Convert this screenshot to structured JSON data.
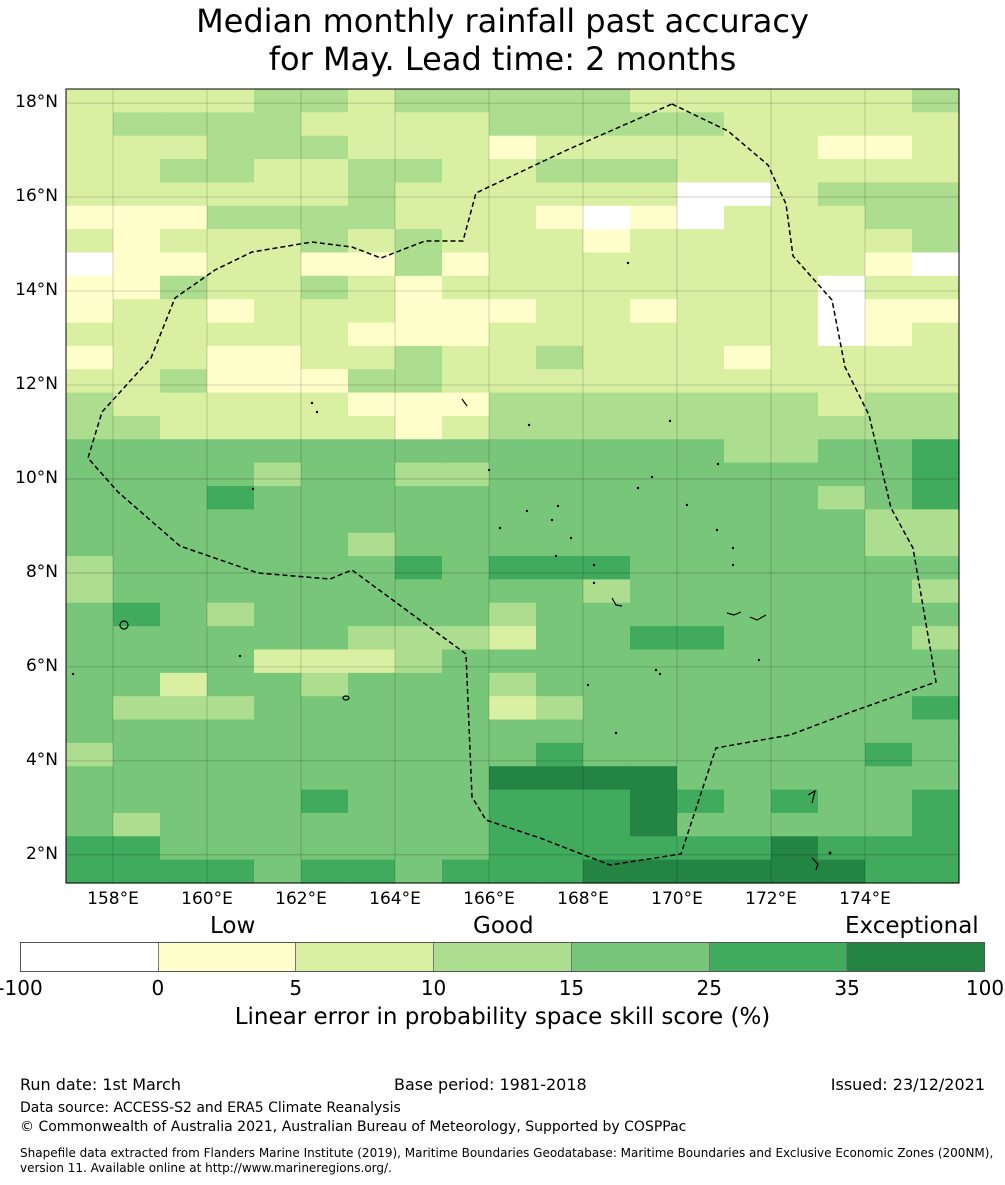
{
  "title": {
    "line1": "Median monthly rainfall past accuracy",
    "line2": "for May. Lead time: 2 months"
  },
  "map": {
    "lat_labels": [
      "18°N",
      "16°N",
      "14°N",
      "12°N",
      "10°N",
      "8°N",
      "6°N",
      "4°N",
      "2°N"
    ],
    "lon_labels": [
      "158°E",
      "160°E",
      "162°E",
      "164°E",
      "166°E",
      "168°E",
      "170°E",
      "172°E",
      "174°E"
    ],
    "lat_values": [
      18,
      16,
      14,
      12,
      10,
      8,
      6,
      4,
      2
    ],
    "lon_values": [
      158,
      160,
      162,
      164,
      166,
      168,
      170,
      172,
      174
    ],
    "extent": {
      "lon_min": 157.0,
      "lon_max": 176.0,
      "lat_min": 1.4,
      "lat_max": 18.3
    },
    "cell_rows_note": "rows top to bottom, cols left to right; class index 0..6 per colorbar segment",
    "grid": [
      "2222332333332222223",
      "2333322223333322222",
      "2223332221222222112",
      "2233223322333222222",
      "2222223222222002333",
      "1113333222101022233",
      "2122232322212222223",
      "0112211312222222210",
      "1132232122222222022",
      "1221222111221222011",
      "2222221112222222012",
      "1221122322322212222",
      "2231113322222222222",
      "3222221113333333233",
      "3322222123333333333",
      "4444444444444433445",
      "4444344334444444445",
      "4445444444444444345",
      "4444444444444444433",
      "4444443444444444433",
      "3444444545554444444",
      "3444444444434444443",
      "4543444443444444444",
      "4444443332445544443",
      "4444222344444444444",
      "4424434443444444444",
      "4333444442344444445",
      "4444444444444444444",
      "3444444444544444454",
      "4444444446666444444",
      "4444454445556545445",
      "4344444445556444445",
      "5544444445555556555",
      "5555455455566666655"
    ]
  },
  "colorbar": {
    "categories": {
      "low": "Low",
      "good": "Good",
      "exceptional": "Exceptional"
    },
    "colors": [
      "#ffffff",
      "#ffffcc",
      "#d9f0a3",
      "#addd8e",
      "#78c679",
      "#41ab5d",
      "#238443"
    ],
    "ticks": [
      "-100",
      "0",
      "5",
      "10",
      "15",
      "25",
      "35",
      "100"
    ],
    "label": "Linear error in probability space skill score (%)"
  },
  "footer": {
    "run_date": "Run date: 1st March",
    "base_period": "Base period: 1981-2018",
    "issued": "Issued: 23/12/2021",
    "data_source": "Data source: ACCESS-S2 and ERA5 Climate Reanalysis",
    "copyright": "© Commonwealth of Australia 2021, Australian Bureau of Meteorology, Supported by COSPPac",
    "shapefile_line1": "Shapefile data extracted from Flanders Marine Institute (2019), Maritime Boundaries Geodatabase: Maritime Boundaries and Exclusive Economic Zones (200NM),",
    "shapefile_line2": "version 11. Available online at http://www.marineregions.org/."
  }
}
